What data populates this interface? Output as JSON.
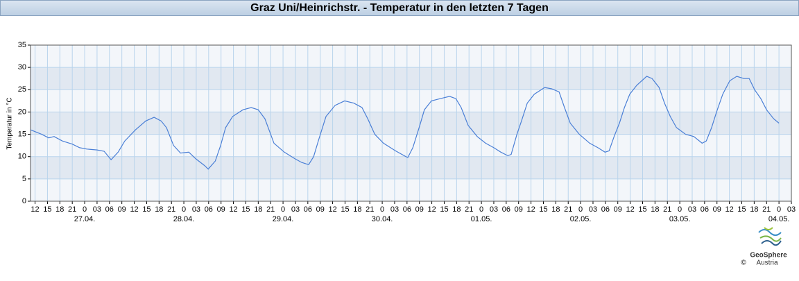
{
  "chart_data": {
    "type": "line",
    "title": "Graz Uni/Heinrichstr. - Temperatur in den letzten 7 Tagen",
    "y_label": "Temperatur in °C",
    "x": [
      10.9,
      13.6,
      15.3,
      16.6,
      18.6,
      21.0,
      22.8,
      24.5,
      27.0,
      28.7,
      30.4,
      32.1,
      33.7,
      36.3,
      38.8,
      40.8,
      42.5,
      43.8,
      45.5,
      47.2,
      49.2,
      50.9,
      53.0,
      53.9,
      55.6,
      56.9,
      58.1,
      59.8,
      62.3,
      64.3,
      66.0,
      67.6,
      69.8,
      72.3,
      74.9,
      76.5,
      78.2,
      79.4,
      80.7,
      82.4,
      84.6,
      86.9,
      89.1,
      91.1,
      92.5,
      94.2,
      96.3,
      99.2,
      101.7,
      102.2,
      103.4,
      105.1,
      106.2,
      107.9,
      110.1,
      112.3,
      113.8,
      115.1,
      116.8,
      119.0,
      121.0,
      123.0,
      124.7,
      126.4,
      127.2,
      128.6,
      129.7,
      131.1,
      132.8,
      135.3,
      137.0,
      138.8,
      140.1,
      141.5,
      143.7,
      146.2,
      148.2,
      149.9,
      150.9,
      152.1,
      153.4,
      154.6,
      155.9,
      157.6,
      160.0,
      161.3,
      163.0,
      164.3,
      165.7,
      167.2,
      169.4,
      171.4,
      173.4,
      174.4,
      175.7,
      176.9,
      178.4,
      180.1,
      181.8,
      183.5,
      184.8,
      186.1,
      187.6,
      189.0,
      190.7,
      192.0
    ],
    "series": [
      {
        "name": "Temperatur",
        "color": "#4a7fd6",
        "values": [
          16,
          15,
          14.2,
          14.5,
          13.5,
          12.8,
          12,
          11.7,
          11.5,
          11.2,
          9.3,
          11,
          13.5,
          16,
          18,
          18.8,
          18,
          16.5,
          12.5,
          10.8,
          11,
          9.5,
          8,
          7.2,
          9,
          12.5,
          16.5,
          19,
          20.5,
          21,
          20.5,
          18.5,
          13,
          11,
          9.5,
          8.7,
          8.2,
          10,
          14,
          19,
          21.5,
          22.5,
          22,
          21,
          18.5,
          15,
          13,
          11.3,
          10,
          9.8,
          12,
          17,
          20.5,
          22.5,
          23,
          23.5,
          23,
          21,
          17,
          14.5,
          13,
          12,
          11,
          10.2,
          10.5,
          15,
          18,
          22,
          24,
          25.5,
          25.2,
          24.5,
          21,
          17.5,
          15,
          13,
          12,
          11,
          11.3,
          14.5,
          17.5,
          21,
          24,
          26,
          28,
          27.5,
          25.5,
          22,
          19,
          16.5,
          15,
          14.5,
          13,
          13.5,
          16.5,
          20,
          24,
          27,
          28,
          27.5,
          27.5,
          25,
          23,
          20.5,
          18.5,
          17.5
        ]
      }
    ],
    "xlim": [
      10.9,
      195
    ],
    "xticks": [
      12,
      15,
      18,
      21,
      {
        "value": 24,
        "label": "0"
      },
      {
        "value": 27,
        "label": "03"
      },
      {
        "value": 30,
        "label": "06"
      },
      {
        "value": 33,
        "label": "09"
      },
      {
        "value": 36,
        "label": "12"
      },
      {
        "value": 39,
        "label": "15"
      },
      {
        "value": 42,
        "label": "18"
      },
      {
        "value": 45,
        "label": "21"
      },
      {
        "value": 48,
        "label": "0"
      },
      {
        "value": 51,
        "label": "03"
      },
      {
        "value": 54,
        "label": "06"
      },
      {
        "value": 57,
        "label": "09"
      },
      {
        "value": 60,
        "label": "12"
      },
      {
        "value": 63,
        "label": "15"
      },
      {
        "value": 66,
        "label": "18"
      },
      {
        "value": 69,
        "label": "21"
      },
      {
        "value": 72,
        "label": "0"
      },
      {
        "value": 75,
        "label": "03"
      },
      {
        "value": 78,
        "label": "06"
      },
      {
        "value": 81,
        "label": "09"
      },
      {
        "value": 84,
        "label": "12"
      },
      {
        "value": 87,
        "label": "15"
      },
      {
        "value": 90,
        "label": "18"
      },
      {
        "value": 93,
        "label": "21"
      },
      {
        "value": 96,
        "label": "0"
      },
      {
        "value": 99,
        "label": "03"
      },
      {
        "value": 102,
        "label": "06"
      },
      {
        "value": 105,
        "label": "09"
      },
      {
        "value": 108,
        "label": "12"
      },
      {
        "value": 111,
        "label": "15"
      },
      {
        "value": 114,
        "label": "18"
      },
      {
        "value": 117,
        "label": "21"
      },
      {
        "value": 120,
        "label": "0"
      },
      {
        "value": 123,
        "label": "03"
      },
      {
        "value": 126,
        "label": "06"
      },
      {
        "value": 129,
        "label": "09"
      },
      {
        "value": 132,
        "label": "12"
      },
      {
        "value": 135,
        "label": "15"
      },
      {
        "value": 138,
        "label": "18"
      },
      {
        "value": 141,
        "label": "21"
      },
      {
        "value": 144,
        "label": "0"
      },
      {
        "value": 147,
        "label": "03"
      },
      {
        "value": 150,
        "label": "06"
      },
      {
        "value": 153,
        "label": "09"
      },
      {
        "value": 156,
        "label": "12"
      },
      {
        "value": 159,
        "label": "15"
      },
      {
        "value": 162,
        "label": "18"
      },
      {
        "value": 165,
        "label": "21"
      },
      {
        "value": 168,
        "label": "0"
      },
      {
        "value": 171,
        "label": "03"
      },
      {
        "value": 174,
        "label": "06"
      },
      {
        "value": 177,
        "label": "09"
      },
      {
        "value": 180,
        "label": "12"
      },
      {
        "value": 183,
        "label": "15"
      },
      {
        "value": 186,
        "label": "18"
      },
      {
        "value": 189,
        "label": "21"
      },
      {
        "value": 192,
        "label": "0"
      },
      {
        "value": 195,
        "label": "03"
      }
    ],
    "date_ticks": [
      {
        "value": 24,
        "label": "27.04."
      },
      {
        "value": 48,
        "label": "28.04."
      },
      {
        "value": 72,
        "label": "29.04."
      },
      {
        "value": 96,
        "label": "30.04."
      },
      {
        "value": 120,
        "label": "01.05."
      },
      {
        "value": 144,
        "label": "02.05."
      },
      {
        "value": 168,
        "label": "03.05."
      },
      {
        "value": 192,
        "label": "04.05."
      }
    ],
    "ylim": [
      0,
      35
    ],
    "yticks": [
      0,
      5,
      10,
      15,
      20,
      25,
      30,
      35
    ],
    "grid": true,
    "band_colors": [
      "#f3f6fa",
      "#e1e8f1"
    ],
    "grid_color": "#b9d4ec"
  },
  "logo": {
    "name": "GeoSphere",
    "sub": "Austria",
    "copyright": "©"
  }
}
